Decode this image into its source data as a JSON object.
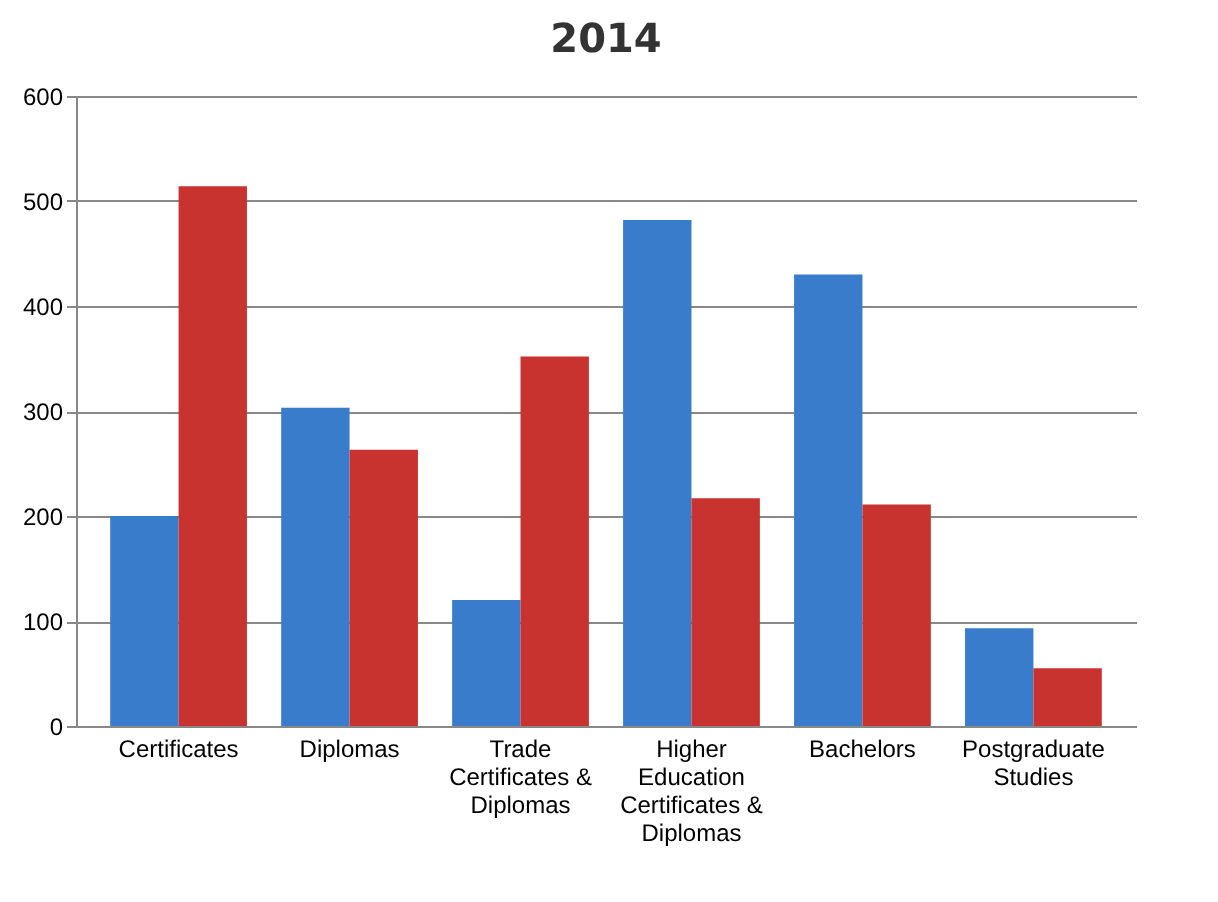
{
  "chart_data": {
    "type": "bar",
    "title": "2014",
    "categories": [
      "Certificates",
      "Diplomas",
      "Trade Certificates & Diplomas",
      "Higher Education Certificates & Diplomas",
      "Bachelors",
      "Postgraduate Studies"
    ],
    "series": [
      {
        "color": "#3a7ccc",
        "values": [
          200,
          303,
          120,
          482,
          430,
          93
        ]
      },
      {
        "color": "#c9332f",
        "values": [
          514,
          263,
          352,
          217,
          211,
          55
        ]
      }
    ],
    "ylim": [
      0,
      600
    ],
    "yticks": [
      0,
      100,
      200,
      300,
      400,
      500,
      600
    ],
    "grid": "y",
    "legend": false
  }
}
